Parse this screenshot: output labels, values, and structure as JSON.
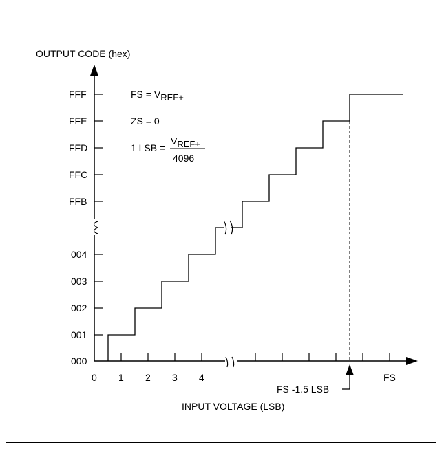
{
  "y_axis": {
    "title": "OUTPUT CODE (hex)",
    "upper_labels": [
      "FFF",
      "FFE",
      "FFD",
      "FFC",
      "FFB"
    ],
    "lower_labels": [
      "004",
      "003",
      "002",
      "001",
      "000"
    ]
  },
  "x_axis": {
    "title": "INPUT VOLTAGE (LSB)",
    "labels": [
      "0",
      "1",
      "2",
      "3",
      "4"
    ],
    "fs_label": "FS"
  },
  "legend": {
    "fs_prefix": "FS = V",
    "fs_sub": "REF+",
    "zs": "ZS = 0",
    "lsb_prefix": "1 LSB =",
    "lsb_num": "V",
    "lsb_num_sub": "REF+",
    "lsb_den": "4096"
  },
  "annotation": {
    "text": "FS -1.5 LSB"
  }
}
